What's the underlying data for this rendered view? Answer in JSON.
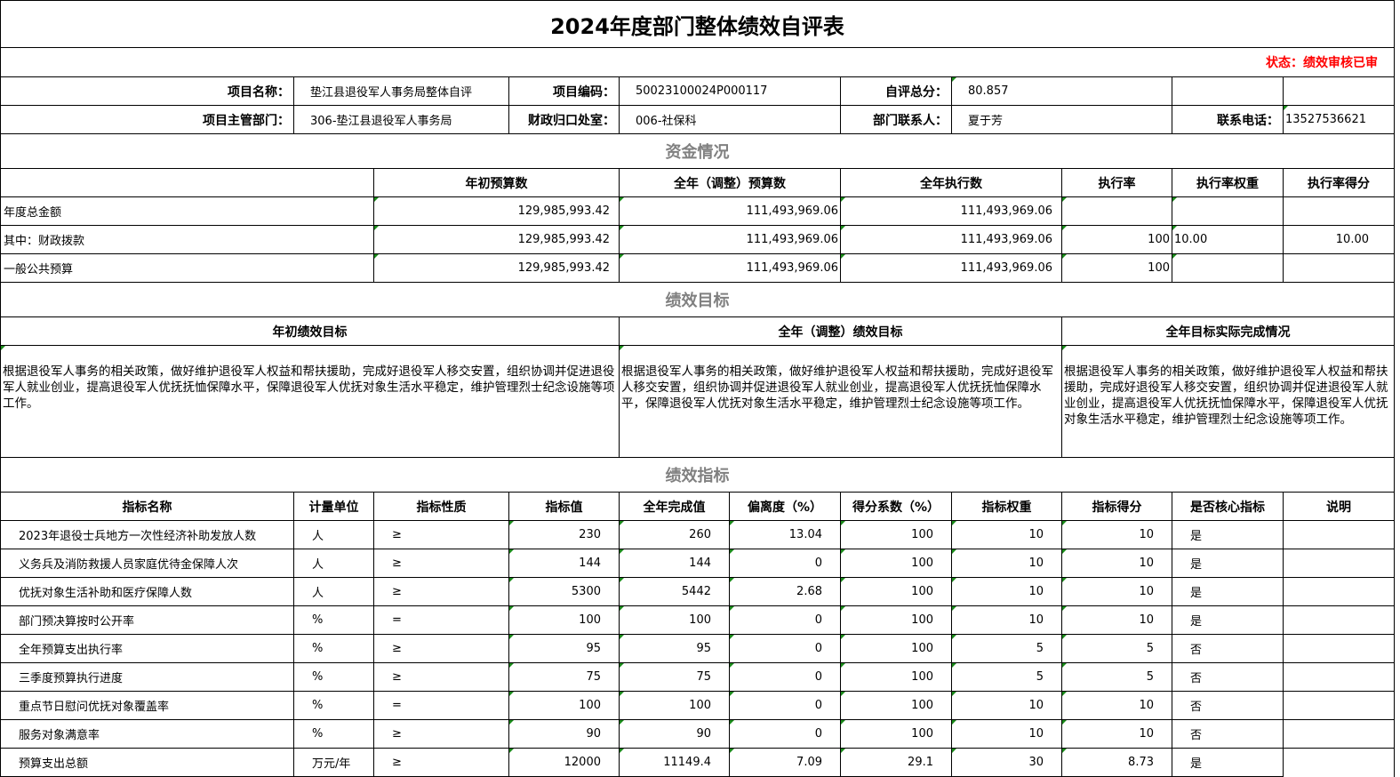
{
  "title": "2024年度部门整体绩效自评表",
  "status": "状态：绩效审核已审",
  "info": {
    "project_name_label": "项目名称：",
    "project_name": "垫江县退役军人事务局整体自评",
    "project_code_label": "项目编码：",
    "project_code": "50023100024P000117",
    "total_score_label": "自评总分：",
    "total_score": "80.857",
    "dept_label": "项目主管部门：",
    "dept": "306-垫江县退役军人事务局",
    "finance_office_label": "财政归口处室：",
    "finance_office": "006-社保科",
    "contact_label": "部门联系人：",
    "contact": "夏于芳",
    "phone_label": "联系电话：",
    "phone": "13527536621"
  },
  "funds": {
    "section_title": "资金情况",
    "headers": [
      "年初预算数",
      "全年（调整）预算数",
      "全年执行数",
      "执行率",
      "执行率权重",
      "执行率得分"
    ],
    "rows": [
      {
        "label": "年度总金额",
        "initial": "129,985,993.42",
        "adjusted": "111,493,969.06",
        "executed": "111,493,969.06",
        "rate": "",
        "weight": "",
        "score": ""
      },
      {
        "label": "其中：财政拨款",
        "initial": "129,985,993.42",
        "adjusted": "111,493,969.06",
        "executed": "111,493,969.06",
        "rate": "100",
        "weight": "10.00",
        "score": "10.00"
      },
      {
        "label": "一般公共预算",
        "initial": "129,985,993.42",
        "adjusted": "111,493,969.06",
        "executed": "111,493,969.06",
        "rate": "100",
        "weight": "",
        "score": ""
      }
    ]
  },
  "goals": {
    "section_title": "绩效目标",
    "headers": [
      "年初绩效目标",
      "全年（调整）绩效目标",
      "全年目标实际完成情况"
    ],
    "texts": [
      "根据退役军人事务的相关政策，做好维护退役军人权益和帮扶援助，完成好退役军人移交安置，组织协调并促进退役军人就业创业，提高退役军人优抚抚恤保障水平，保障退役军人优抚对象生活水平稳定，维护管理烈士纪念设施等项工作。",
      "根据退役军人事务的相关政策，做好维护退役军人权益和帮扶援助，完成好退役军人移交安置，组织协调并促进退役军人就业创业，提高退役军人优抚抚恤保障水平，保障退役军人优抚对象生活水平稳定，维护管理烈士纪念设施等项工作。",
      "根据退役军人事务的相关政策，做好维护退役军人权益和帮扶援助，完成好退役军人移交安置，组织协调并促进退役军人就业创业，提高退役军人优抚抚恤保障水平，保障退役军人优抚对象生活水平稳定，维护管理烈士纪念设施等项工作。"
    ]
  },
  "indicators": {
    "section_title": "绩效指标",
    "headers": [
      "指标名称",
      "计量单位",
      "指标性质",
      "指标值",
      "全年完成值",
      "偏离度（%）",
      "得分系数（%）",
      "指标权重",
      "指标得分",
      "是否核心指标",
      "说明"
    ],
    "rows": [
      [
        "2023年退役士兵地方一次性经济补助发放人数",
        "人",
        "≥",
        "230",
        "260",
        "13.04",
        "100",
        "10",
        "10",
        "是",
        ""
      ],
      [
        "义务兵及消防救援人员家庭优待金保障人次",
        "人",
        "≥",
        "144",
        "144",
        "0",
        "100",
        "10",
        "10",
        "是",
        ""
      ],
      [
        "优抚对象生活补助和医疗保障人数",
        "人",
        "≥",
        "5300",
        "5442",
        "2.68",
        "100",
        "10",
        "10",
        "是",
        ""
      ],
      [
        "部门预决算按时公开率",
        "%",
        "=",
        "100",
        "100",
        "0",
        "100",
        "10",
        "10",
        "是",
        ""
      ],
      [
        "全年预算支出执行率",
        "%",
        "≥",
        "95",
        "95",
        "0",
        "100",
        "5",
        "5",
        "否",
        ""
      ],
      [
        "三季度预算执行进度",
        "%",
        "≥",
        "75",
        "75",
        "0",
        "100",
        "5",
        "5",
        "否",
        ""
      ],
      [
        "重点节日慰问优抚对象覆盖率",
        "%",
        "=",
        "100",
        "100",
        "0",
        "100",
        "10",
        "10",
        "否",
        ""
      ],
      [
        "服务对象满意率",
        "%",
        "≥",
        "90",
        "90",
        "0",
        "100",
        "10",
        "10",
        "否",
        ""
      ],
      [
        "预算支出总额",
        "万元/年",
        "≥",
        "12000",
        "11149.4",
        "7.09",
        "29.1",
        "30",
        "8.73",
        "是",
        ""
      ]
    ]
  },
  "colors": {
    "status": "#ff0000",
    "section": "#808080",
    "marker": "#1a8a1a"
  }
}
